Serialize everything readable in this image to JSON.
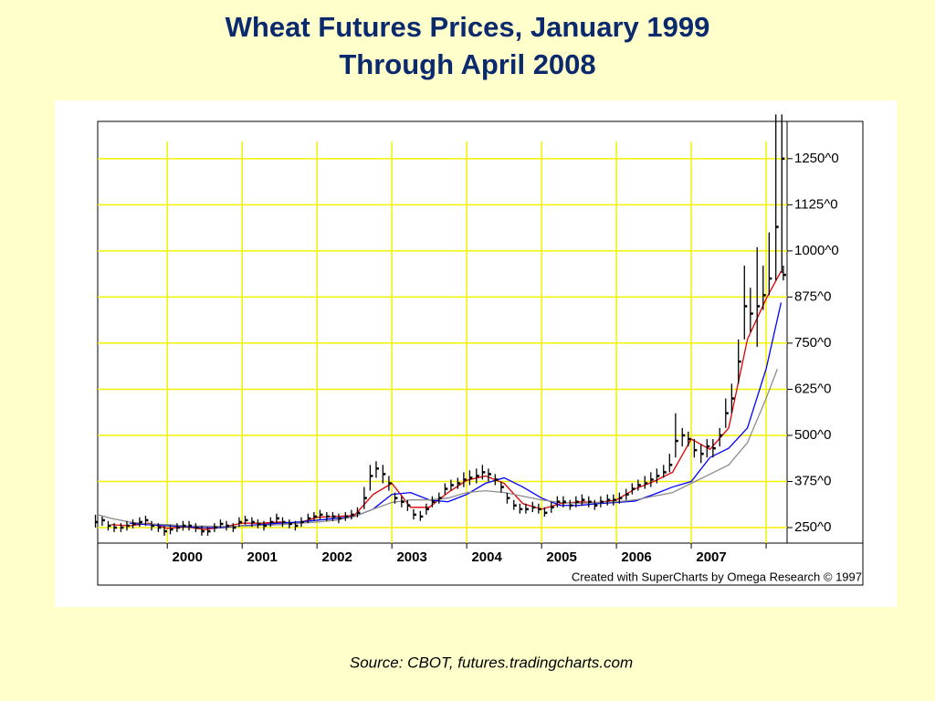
{
  "chart_data": {
    "type": "ohlc",
    "title": [
      "Wheat Futures Prices, January 1999",
      "Through April 2008"
    ],
    "credit": "Created with SuperCharts by Omega Research © 1997",
    "source": "Source: CBOT, futures.tradingcharts.com",
    "xlim": [
      1999.07,
      2008.28
    ],
    "xticks": [
      2000,
      2001,
      2002,
      2003,
      2004,
      2005,
      2006,
      2007,
      {
        "value": 2008,
        "label": null
      }
    ],
    "ylim": [
      208,
      1351
    ],
    "yticks": [
      {
        "value": 250,
        "label": "250^0"
      },
      {
        "value": 375,
        "label": "375^0"
      },
      {
        "value": 500,
        "label": "500^0"
      },
      {
        "value": 625,
        "label": "625^0"
      },
      {
        "value": 750,
        "label": "750^0"
      },
      {
        "value": 875,
        "label": "875^0"
      },
      {
        "value": 1000,
        "label": "1000^0"
      },
      {
        "value": 1125,
        "label": "1125^0"
      },
      {
        "value": 1250,
        "label": "1250^0"
      }
    ],
    "grid": true,
    "grid_color": "#f2f200",
    "bars": {
      "color": "#000000",
      "x": [
        1999.04,
        1999.13,
        1999.21,
        1999.29,
        1999.38,
        1999.46,
        1999.54,
        1999.63,
        1999.71,
        1999.79,
        1999.88,
        1999.96,
        2000.04,
        2000.13,
        2000.21,
        2000.29,
        2000.38,
        2000.46,
        2000.54,
        2000.63,
        2000.71,
        2000.79,
        2000.88,
        2000.96,
        2001.04,
        2001.13,
        2001.21,
        2001.29,
        2001.38,
        2001.46,
        2001.54,
        2001.63,
        2001.71,
        2001.79,
        2001.88,
        2001.96,
        2002.04,
        2002.13,
        2002.21,
        2002.29,
        2002.38,
        2002.46,
        2002.54,
        2002.63,
        2002.71,
        2002.79,
        2002.88,
        2002.96,
        2003.04,
        2003.13,
        2003.21,
        2003.29,
        2003.38,
        2003.46,
        2003.54,
        2003.63,
        2003.71,
        2003.79,
        2003.88,
        2003.96,
        2004.04,
        2004.13,
        2004.21,
        2004.29,
        2004.38,
        2004.46,
        2004.54,
        2004.63,
        2004.71,
        2004.79,
        2004.88,
        2004.96,
        2005.04,
        2005.13,
        2005.21,
        2005.29,
        2005.38,
        2005.46,
        2005.54,
        2005.63,
        2005.71,
        2005.79,
        2005.88,
        2005.96,
        2006.04,
        2006.13,
        2006.21,
        2006.29,
        2006.38,
        2006.46,
        2006.54,
        2006.63,
        2006.71,
        2006.79,
        2006.88,
        2006.96,
        2007.04,
        2007.13,
        2007.21,
        2007.29,
        2007.38,
        2007.46,
        2007.54,
        2007.63,
        2007.71,
        2007.79,
        2007.88,
        2007.96,
        2008.04,
        2008.13,
        2008.21,
        2008.23
      ],
      "high": [
        285,
        280,
        268,
        262,
        262,
        268,
        272,
        278,
        282,
        268,
        262,
        255,
        258,
        262,
        268,
        268,
        262,
        255,
        252,
        262,
        272,
        268,
        262,
        278,
        282,
        278,
        272,
        268,
        278,
        288,
        278,
        272,
        268,
        278,
        288,
        292,
        298,
        292,
        292,
        288,
        292,
        298,
        305,
        360,
        420,
        430,
        420,
        390,
        345,
        335,
        325,
        300,
        295,
        315,
        335,
        345,
        370,
        380,
        385,
        400,
        405,
        410,
        420,
        410,
        395,
        375,
        345,
        325,
        315,
        315,
        320,
        315,
        305,
        320,
        335,
        335,
        325,
        335,
        340,
        335,
        325,
        335,
        340,
        340,
        345,
        355,
        370,
        380,
        390,
        400,
        410,
        420,
        450,
        560,
        520,
        510,
        490,
        475,
        490,
        490,
        520,
        600,
        640,
        760,
        960,
        900,
        1010,
        960,
        1050,
        1370,
        1370,
        960
      ],
      "low": [
        250,
        255,
        242,
        238,
        238,
        242,
        248,
        252,
        255,
        242,
        238,
        228,
        232,
        238,
        242,
        242,
        238,
        228,
        228,
        238,
        248,
        242,
        238,
        252,
        258,
        252,
        248,
        242,
        252,
        262,
        252,
        248,
        242,
        252,
        262,
        268,
        272,
        268,
        268,
        262,
        268,
        272,
        278,
        300,
        350,
        385,
        370,
        350,
        315,
        305,
        295,
        272,
        268,
        285,
        305,
        315,
        340,
        350,
        355,
        360,
        365,
        370,
        380,
        375,
        365,
        345,
        315,
        298,
        288,
        288,
        292,
        288,
        280,
        290,
        305,
        305,
        298,
        305,
        310,
        305,
        298,
        305,
        310,
        310,
        315,
        325,
        340,
        350,
        355,
        360,
        370,
        385,
        400,
        440,
        470,
        470,
        440,
        425,
        440,
        440,
        470,
        520,
        560,
        640,
        760,
        780,
        740,
        840,
        880,
        920,
        940,
        920
      ],
      "close": [
        265,
        270,
        255,
        250,
        250,
        255,
        260,
        265,
        270,
        255,
        250,
        240,
        245,
        250,
        255,
        255,
        250,
        240,
        240,
        250,
        260,
        255,
        250,
        265,
        270,
        265,
        260,
        255,
        265,
        275,
        265,
        260,
        255,
        265,
        275,
        280,
        285,
        280,
        280,
        275,
        280,
        285,
        290,
        330,
        390,
        410,
        395,
        370,
        330,
        320,
        310,
        285,
        280,
        300,
        320,
        330,
        355,
        365,
        370,
        380,
        385,
        390,
        400,
        395,
        380,
        360,
        330,
        310,
        300,
        300,
        305,
        300,
        290,
        305,
        320,
        320,
        310,
        320,
        325,
        320,
        310,
        320,
        325,
        325,
        330,
        340,
        355,
        365,
        370,
        380,
        390,
        400,
        420,
        485,
        500,
        490,
        460,
        450,
        470,
        465,
        500,
        560,
        600,
        700,
        850,
        830,
        850,
        880,
        925,
        1065,
        1250,
        935
      ]
    },
    "series": [
      {
        "color": "#e00000",
        "x": [
          1999.25,
          1999.5,
          1999.75,
          2000,
          2000.25,
          2000.5,
          2000.75,
          2001,
          2001.25,
          2001.5,
          2001.75,
          2002,
          2002.25,
          2002.5,
          2002.75,
          2003,
          2003.25,
          2003.5,
          2003.75,
          2004,
          2004.25,
          2004.5,
          2004.75,
          2005,
          2005.25,
          2005.5,
          2005.75,
          2006,
          2006.25,
          2006.5,
          2006.75,
          2007,
          2007.25,
          2007.5,
          2007.75,
          2008,
          2008.2
        ],
        "values": [
          258,
          255,
          262,
          248,
          252,
          245,
          252,
          262,
          262,
          265,
          262,
          278,
          280,
          283,
          340,
          370,
          305,
          305,
          345,
          378,
          390,
          370,
          315,
          300,
          315,
          320,
          318,
          325,
          355,
          375,
          400,
          490,
          462,
          520,
          760,
          870,
          945
        ]
      },
      {
        "color": "#0000ff",
        "x": [
          1999.5,
          1999.75,
          2000,
          2000.25,
          2000.5,
          2000.75,
          2001,
          2001.25,
          2001.5,
          2001.75,
          2002,
          2002.25,
          2002.5,
          2002.75,
          2003,
          2003.25,
          2003.5,
          2003.75,
          2004,
          2004.25,
          2004.5,
          2004.75,
          2005,
          2005.25,
          2005.5,
          2005.75,
          2006,
          2006.25,
          2006.5,
          2006.75,
          2007,
          2007.25,
          2007.5,
          2007.75,
          2008,
          2008.2
        ],
        "values": [
          262,
          258,
          255,
          252,
          250,
          250,
          255,
          258,
          262,
          265,
          270,
          275,
          280,
          300,
          340,
          345,
          325,
          320,
          340,
          370,
          385,
          360,
          330,
          310,
          310,
          315,
          318,
          322,
          340,
          360,
          375,
          440,
          465,
          520,
          680,
          860
        ]
      },
      {
        "color": "#8c8c8c",
        "x": [
          1999.07,
          1999.25,
          1999.5,
          1999.75,
          2000,
          2000.25,
          2000.5,
          2000.75,
          2001,
          2001.25,
          2001.5,
          2001.75,
          2002,
          2002.25,
          2002.5,
          2002.75,
          2003,
          2003.25,
          2003.5,
          2003.75,
          2004,
          2004.25,
          2004.5,
          2004.75,
          2005,
          2005.25,
          2005.5,
          2005.75,
          2006,
          2006.25,
          2006.5,
          2006.75,
          2007,
          2007.25,
          2007.5,
          2007.75,
          2008,
          2008.15
        ],
        "values": [
          285,
          275,
          265,
          260,
          258,
          255,
          254,
          253,
          254,
          256,
          258,
          262,
          265,
          270,
          280,
          300,
          318,
          325,
          325,
          330,
          345,
          350,
          345,
          335,
          325,
          318,
          316,
          318,
          320,
          325,
          335,
          345,
          370,
          395,
          420,
          480,
          600,
          680
        ]
      }
    ]
  }
}
